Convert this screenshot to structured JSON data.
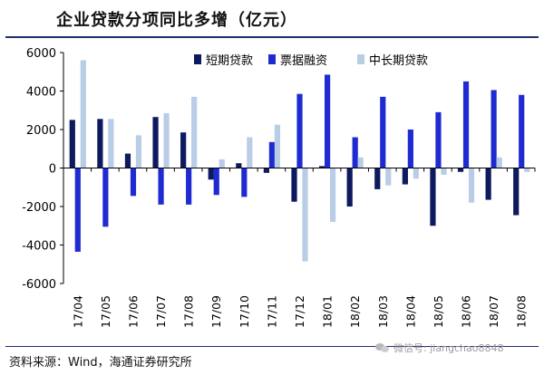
{
  "title": "企业贷款分项同比多增（亿元）",
  "source": "资料来源：Wind，海通证券研究所",
  "watermark": "微信号: jiangchao8848",
  "colors": {
    "short": "#0d1a5e",
    "bill": "#1f2bd1",
    "long": "#b9cde6",
    "axis": "#000000"
  },
  "chart_data": {
    "type": "bar",
    "title": "企业贷款分项同比多增（亿元）",
    "xlabel": "",
    "ylabel": "",
    "ylim": [
      -6000,
      6000
    ],
    "yticks": [
      6000,
      4000,
      2000,
      0,
      -2000,
      -4000,
      -6000
    ],
    "legend_position": "top",
    "categories": [
      "17/04",
      "17/05",
      "17/06",
      "17/07",
      "17/08",
      "17/09",
      "17/10",
      "17/11",
      "17/12",
      "18/01",
      "18/02",
      "18/03",
      "18/04",
      "18/05",
      "18/06",
      "18/07",
      "18/08"
    ],
    "series": [
      {
        "name": "短期贷款",
        "values": [
          2500,
          2550,
          750,
          2650,
          1850,
          -600,
          250,
          -250,
          -1750,
          100,
          -2000,
          -1100,
          -850,
          -3000,
          -200,
          -1650,
          -2450
        ]
      },
      {
        "name": "票据融资",
        "values": [
          -4350,
          -3050,
          -1450,
          -1900,
          -1900,
          -1400,
          -1500,
          1350,
          3850,
          4850,
          1600,
          3700,
          2000,
          2900,
          4500,
          4050,
          3800
        ]
      },
      {
        "name": "中长期贷款",
        "values": [
          5600,
          2550,
          1700,
          2850,
          3700,
          450,
          1600,
          2250,
          -4850,
          -2800,
          550,
          -900,
          -550,
          -350,
          -1800,
          550,
          -200
        ]
      }
    ]
  }
}
